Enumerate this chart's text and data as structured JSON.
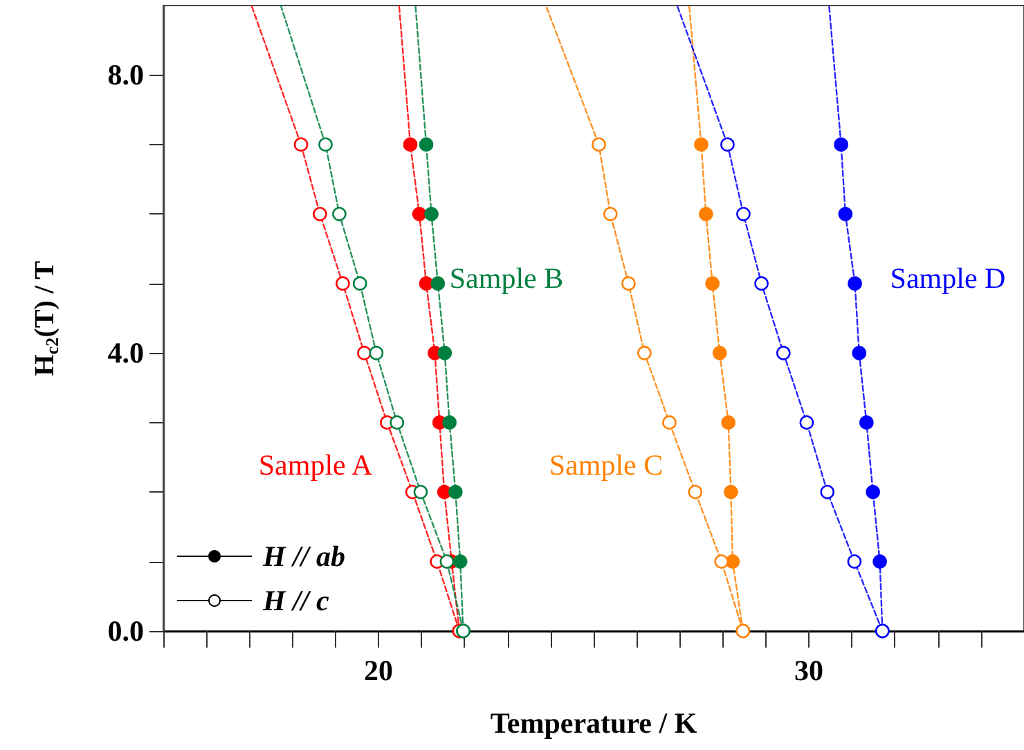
{
  "chart_data": {
    "type": "line",
    "xlabel": "Temperature / K",
    "ylabel": "H$_{c2}$(T) / T",
    "xlim": [
      15,
      35
    ],
    "ylim": [
      0,
      9
    ],
    "xticks": [
      {
        "value": 15,
        "label": null
      },
      {
        "value": 16,
        "label": null
      },
      {
        "value": 17,
        "label": null
      },
      {
        "value": 18,
        "label": null
      },
      {
        "value": 19,
        "label": null
      },
      20,
      {
        "value": 21,
        "label": null
      },
      {
        "value": 22,
        "label": null
      },
      {
        "value": 23,
        "label": null
      },
      {
        "value": 24,
        "label": null
      },
      {
        "value": 25,
        "label": null
      },
      {
        "value": 26,
        "label": null
      },
      {
        "value": 27,
        "label": null
      },
      {
        "value": 28,
        "label": null
      },
      {
        "value": 29,
        "label": null
      },
      30,
      {
        "value": 31,
        "label": null
      },
      {
        "value": 32,
        "label": null
      },
      {
        "value": 33,
        "label": null
      },
      {
        "value": 34,
        "label": null
      }
    ],
    "yticks": [
      {
        "value": 0,
        "label": "0.0"
      },
      {
        "value": 1,
        "label": null
      },
      {
        "value": 2,
        "label": null
      },
      {
        "value": 3,
        "label": null
      },
      {
        "value": 4,
        "label": "4.0"
      },
      {
        "value": 5,
        "label": null
      },
      {
        "value": 6,
        "label": null
      },
      {
        "value": 7,
        "label": null
      },
      {
        "value": 8,
        "label": "8.0"
      }
    ],
    "grid": false,
    "marker": "circle",
    "line_style": "dashed",
    "annotations": [
      "Sample A",
      "Sample B",
      "Sample C",
      "Sample D",
      "H // ab",
      "H // c"
    ],
    "series": [
      {
        "color": "#ff0000",
        "x": [
          21.88,
          21.7,
          21.53,
          21.42,
          21.31,
          21.11,
          20.95,
          20.74
        ],
        "values": [
          0,
          1,
          2,
          3,
          4,
          5,
          6,
          7
        ]
      },
      {
        "color": "#ff0000",
        "x": [
          21.88,
          21.36,
          20.79,
          20.2,
          19.67,
          19.17,
          18.64,
          18.2
        ],
        "values": [
          0,
          1,
          2,
          3,
          4,
          5,
          6,
          7
        ]
      },
      {
        "color": "#008040",
        "x": [
          21.97,
          21.9,
          21.79,
          21.65,
          21.54,
          21.38,
          21.23,
          21.11
        ],
        "values": [
          0,
          1,
          2,
          3,
          4,
          5,
          6,
          7
        ]
      },
      {
        "color": "#008040",
        "x": [
          21.97,
          21.59,
          20.98,
          20.43,
          19.95,
          19.57,
          19.09,
          18.77
        ],
        "values": [
          0,
          1,
          2,
          3,
          4,
          5,
          6,
          7
        ]
      },
      {
        "color": "#ff8000",
        "x": [
          28.47,
          28.23,
          28.19,
          28.13,
          27.93,
          27.76,
          27.61,
          27.5
        ],
        "values": [
          0,
          1,
          2,
          3,
          4,
          5,
          6,
          7
        ]
      },
      {
        "color": "#ff8000",
        "x": [
          28.47,
          27.97,
          27.36,
          26.76,
          26.18,
          25.81,
          25.39,
          25.12
        ],
        "values": [
          0,
          1,
          2,
          3,
          4,
          5,
          6,
          7
        ]
      },
      {
        "color": "#0000ff",
        "x": [
          31.71,
          31.65,
          31.49,
          31.34,
          31.17,
          31.07,
          30.85,
          30.75
        ],
        "values": [
          0,
          1,
          2,
          3,
          4,
          5,
          6,
          7
        ]
      },
      {
        "color": "#0000ff",
        "x": [
          31.71,
          31.06,
          30.43,
          29.95,
          29.41,
          28.9,
          28.48,
          28.11
        ],
        "values": [
          0,
          1,
          2,
          3,
          4,
          5,
          6,
          7
        ]
      },
      {
        "type": "line",
        "marker": "none",
        "color": "#ff0000",
        "x": [
          20.74,
          20.48
        ],
        "values": [
          7,
          9
        ]
      },
      {
        "type": "line",
        "marker": "none",
        "color": "#ff0000",
        "x": [
          18.2,
          17.05
        ],
        "values": [
          7,
          9
        ]
      },
      {
        "type": "line",
        "marker": "none",
        "color": "#008040",
        "x": [
          21.11,
          20.86
        ],
        "values": [
          7,
          9
        ]
      },
      {
        "type": "line",
        "marker": "none",
        "color": "#008040",
        "x": [
          18.77,
          17.73
        ],
        "values": [
          7,
          9
        ]
      },
      {
        "type": "line",
        "marker": "none",
        "color": "#ff8000",
        "x": [
          27.5,
          27.22
        ],
        "values": [
          7,
          9
        ]
      },
      {
        "type": "line",
        "marker": "none",
        "color": "#ff8000",
        "x": [
          25.12,
          23.89
        ],
        "values": [
          7,
          9
        ]
      },
      {
        "type": "line",
        "marker": "none",
        "color": "#0000ff",
        "x": [
          30.75,
          30.47
        ],
        "values": [
          7,
          9
        ]
      },
      {
        "type": "line",
        "marker": "none",
        "color": "#0000ff",
        "x": [
          28.11,
          26.94
        ],
        "values": [
          7,
          9
        ]
      }
    ]
  }
}
